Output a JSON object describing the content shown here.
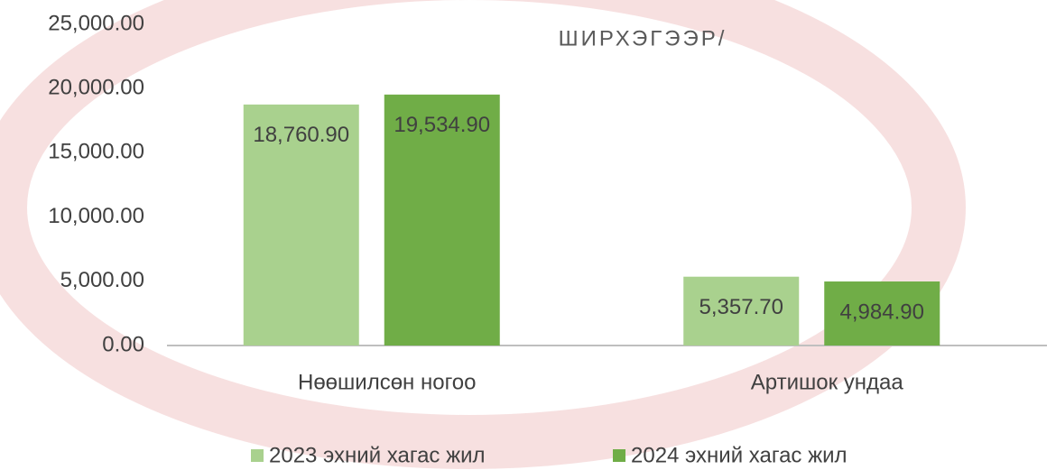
{
  "chart_data": {
    "type": "bar",
    "title": "ШИРХЭГЭЭР/",
    "categories": [
      "Нөөшилсөн ногоо",
      "Артишок ундаа"
    ],
    "series": [
      {
        "name": "2023 эхний хагас жил",
        "color": "#a9d18e",
        "values": [
          18760.9,
          5357.7
        ],
        "value_labels": [
          "18,760.90",
          "5,357.70"
        ]
      },
      {
        "name": "2024 эхний хагас жил",
        "color": "#70ad47",
        "values": [
          19534.9,
          4984.9
        ],
        "value_labels": [
          "19,534.90",
          "4,984.90"
        ]
      }
    ],
    "ylim": [
      0,
      25000
    ],
    "yticks": [
      {
        "value": 0,
        "label": "0.00"
      },
      {
        "value": 5000,
        "label": "5,000.00"
      },
      {
        "value": 10000,
        "label": "10,000.00"
      },
      {
        "value": 15000,
        "label": "15,000.00"
      },
      {
        "value": 20000,
        "label": "20,000.00"
      },
      {
        "value": 25000,
        "label": "25,000.00"
      }
    ],
    "legend": "bottom"
  }
}
